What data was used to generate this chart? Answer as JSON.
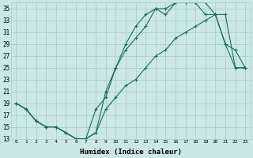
{
  "xlabel": "Humidex (Indice chaleur)",
  "bg_color": "#cce8e4",
  "grid_color": "#aacfcb",
  "line_color": "#1a6b60",
  "xlim": [
    -0.5,
    23.5
  ],
  "ylim": [
    13,
    36
  ],
  "xticks": [
    0,
    1,
    2,
    3,
    4,
    5,
    6,
    7,
    8,
    9,
    10,
    11,
    12,
    13,
    14,
    15,
    16,
    17,
    18,
    19,
    20,
    21,
    22,
    23
  ],
  "yticks": [
    13,
    15,
    17,
    19,
    21,
    23,
    25,
    27,
    29,
    31,
    33,
    35
  ],
  "line1_x": [
    0,
    1,
    2,
    3,
    4,
    5,
    6,
    7,
    8,
    9,
    10,
    11,
    12,
    13,
    14,
    15,
    16,
    17,
    18,
    19,
    20,
    21,
    22,
    23
  ],
  "line1_y": [
    19,
    18,
    16,
    15,
    15,
    14,
    13,
    13,
    14,
    21,
    25,
    28,
    30,
    32,
    35,
    35,
    36,
    36,
    36,
    36,
    34,
    29,
    28,
    25
  ],
  "line2_x": [
    0,
    1,
    2,
    3,
    4,
    5,
    6,
    7,
    8,
    9,
    10,
    11,
    12,
    13,
    14,
    15,
    16,
    17,
    18,
    19,
    20,
    21,
    22,
    23
  ],
  "line2_y": [
    19,
    18,
    16,
    15,
    15,
    14,
    13,
    13,
    18,
    20,
    25,
    29,
    32,
    34,
    35,
    34,
    36,
    36,
    36,
    34,
    34,
    29,
    25,
    25
  ],
  "line3_x": [
    0,
    1,
    2,
    3,
    4,
    5,
    6,
    7,
    8,
    9,
    10,
    11,
    12,
    13,
    14,
    15,
    16,
    17,
    18,
    19,
    20,
    21,
    22,
    23
  ],
  "line3_y": [
    19,
    18,
    16,
    15,
    15,
    14,
    13,
    13,
    14,
    18,
    20,
    22,
    23,
    25,
    27,
    28,
    30,
    31,
    32,
    33,
    34,
    34,
    25,
    25
  ],
  "figw": 3.2,
  "figh": 2.0,
  "dpi": 100
}
